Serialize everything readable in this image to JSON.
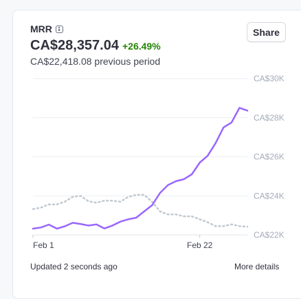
{
  "card": {
    "title": "MRR",
    "value": "CA$28,357.04",
    "change": "+26.49%",
    "previous": "CA$22,418.08 previous period",
    "share_label": "Share",
    "updated": "Updated 2 seconds ago",
    "more_details": "More details"
  },
  "colors": {
    "current": "#9966ff",
    "previous": "#c1c9d2",
    "positive_change": "#228403"
  },
  "chart_data": {
    "type": "line",
    "x_tick_labels": [
      "Feb 1",
      "Feb 22"
    ],
    "y_tick_labels": [
      "CA$30K",
      "CA$28K",
      "CA$26K",
      "CA$24K",
      "CA$22K"
    ],
    "y_ticks": [
      30000,
      28000,
      26000,
      24000,
      22000
    ],
    "ylim": [
      22000,
      30000
    ],
    "xlim": [
      1,
      28
    ],
    "grid": true,
    "x": [
      1,
      2,
      3,
      4,
      5,
      6,
      7,
      8,
      9,
      10,
      11,
      12,
      13,
      14,
      15,
      16,
      17,
      18,
      19,
      20,
      21,
      22,
      23,
      24,
      25,
      26,
      27,
      28
    ],
    "series": [
      {
        "style": "solid",
        "values": [
          22320,
          22380,
          22530,
          22320,
          22440,
          22620,
          22560,
          22480,
          22540,
          22330,
          22480,
          22680,
          22800,
          22880,
          23200,
          23520,
          24150,
          24550,
          24750,
          24850,
          25100,
          25700,
          26050,
          26700,
          27500,
          27750,
          28500,
          28357
        ]
      },
      {
        "style": "dotted",
        "values": [
          23320,
          23400,
          23560,
          23560,
          23700,
          23950,
          24000,
          23720,
          23650,
          23750,
          23750,
          23700,
          23950,
          24050,
          24050,
          23700,
          23200,
          23050,
          23050,
          22950,
          22950,
          22800,
          22650,
          22450,
          22450,
          22540,
          22450,
          22418
        ]
      }
    ]
  }
}
